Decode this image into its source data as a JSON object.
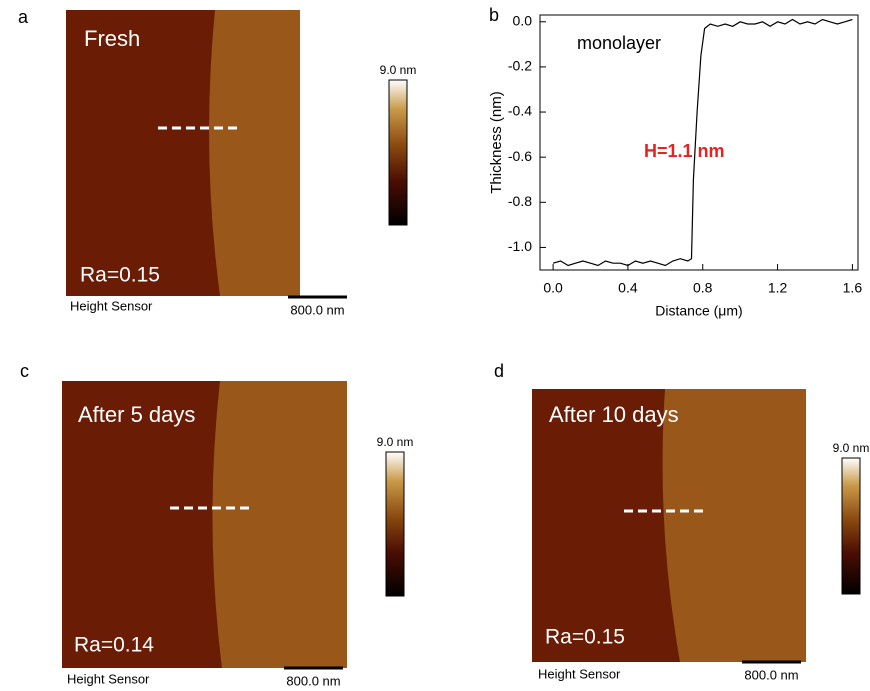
{
  "panels": [
    {
      "letter": "a",
      "label": "Fresh",
      "roughness": "Ra=0.15",
      "sensor": "Height Sensor",
      "scale_bar": "800.0 nm",
      "colorbar_max": "9.0 nm"
    },
    {
      "letter": "c",
      "label": "After 5 days",
      "roughness": "Ra=0.14",
      "sensor": "Height Sensor",
      "scale_bar": "800.0 nm",
      "colorbar_max": "9.0 nm"
    },
    {
      "letter": "d",
      "label": "After 10 days",
      "roughness": "Ra=0.15",
      "sensor": "Height Sensor",
      "scale_bar": "800.0 nm",
      "colorbar_max": "9.0 nm"
    }
  ],
  "chart_data": {
    "type": "line",
    "panel": "b",
    "x_label": "Distance (μm)",
    "y_label": "Thickness (nm)",
    "annotations": [
      "monolayer",
      "H=1.1 nm"
    ],
    "annotation_colors": [
      "#000000",
      "#e8231f"
    ],
    "color": "#000000",
    "x": [
      0,
      0.04,
      0.08,
      0.12,
      0.16,
      0.2,
      0.24,
      0.28,
      0.32,
      0.36,
      0.4,
      0.44,
      0.48,
      0.52,
      0.56,
      0.6,
      0.64,
      0.68,
      0.72,
      0.74,
      0.75,
      0.77,
      0.79,
      0.81,
      0.84,
      0.88,
      0.92,
      0.96,
      1.0,
      1.04,
      1.08,
      1.12,
      1.16,
      1.2,
      1.24,
      1.28,
      1.32,
      1.36,
      1.4,
      1.44,
      1.48,
      1.52,
      1.56,
      1.6
    ],
    "values": [
      -1.07,
      -1.06,
      -1.08,
      -1.07,
      -1.06,
      -1.07,
      -1.08,
      -1.06,
      -1.07,
      -1.07,
      -1.08,
      -1.06,
      -1.07,
      -1.06,
      -1.07,
      -1.08,
      -1.06,
      -1.05,
      -1.06,
      -1.05,
      -0.7,
      -0.4,
      -0.15,
      -0.03,
      -0.01,
      -0.02,
      -0.01,
      -0.02,
      0,
      -0.01,
      -0.01,
      0,
      -0.02,
      0,
      -0.01,
      0.01,
      -0.01,
      0,
      -0.01,
      0.01,
      0,
      -0.01,
      0,
      0.01
    ],
    "xlim": [
      -0.07,
      1.63
    ],
    "ylim": [
      -1.1,
      0.03
    ],
    "xticks": [
      {
        "value": 0,
        "label": "0.0"
      },
      0.4,
      0.8,
      1.2,
      1.6
    ],
    "yticks": [
      {
        "value": -1,
        "label": "-1.0"
      },
      -0.8,
      -0.6,
      -0.4,
      -0.2,
      {
        "value": 0,
        "label": "0.0"
      }
    ]
  }
}
